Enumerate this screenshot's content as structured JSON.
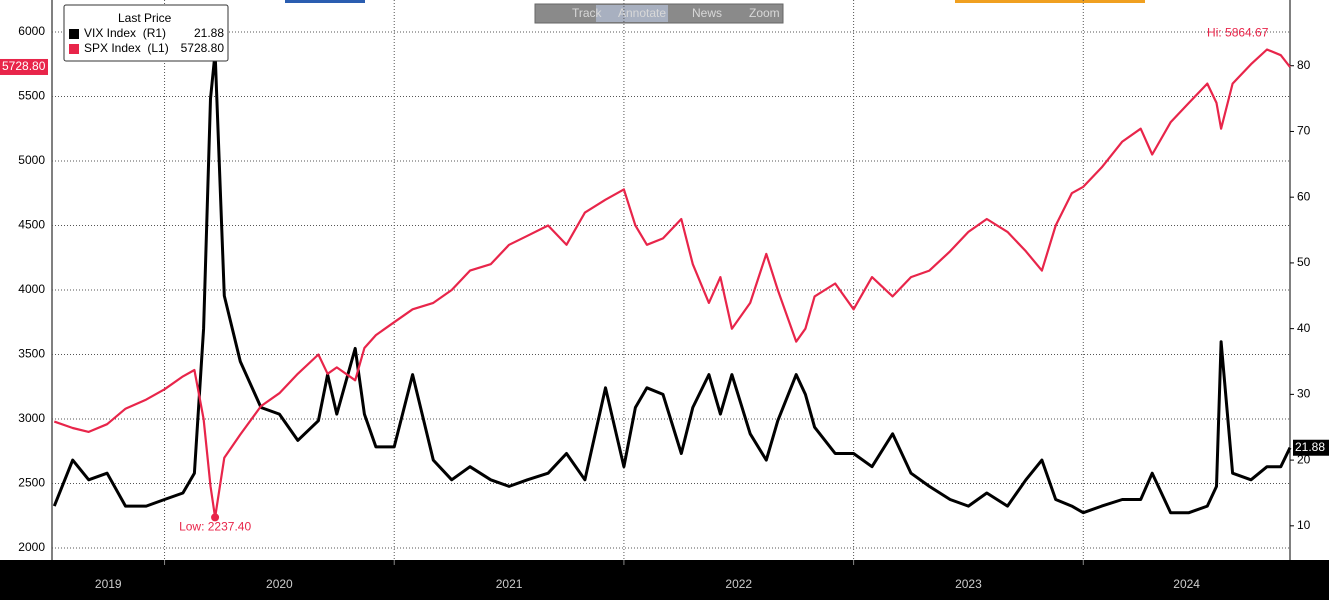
{
  "toolbar": [
    "Track",
    "Annotate",
    "News",
    "Zoom"
  ],
  "chart_data": {
    "type": "line",
    "legend_title": "Last Price",
    "annotations": [
      "Low: 2237.40",
      "Hi: 5864.67"
    ],
    "x": [
      2019.52,
      2019.6,
      2019.67,
      2019.75,
      2019.83,
      2019.92,
      2020.0,
      2020.08,
      2020.13,
      2020.17,
      2020.2,
      2020.22,
      2020.26,
      2020.33,
      2020.42,
      2020.5,
      2020.58,
      2020.67,
      2020.71,
      2020.75,
      2020.83,
      2020.87,
      2020.92,
      2021.0,
      2021.08,
      2021.17,
      2021.25,
      2021.33,
      2021.42,
      2021.5,
      2021.58,
      2021.67,
      2021.75,
      2021.83,
      2021.92,
      2022.0,
      2022.05,
      2022.1,
      2022.17,
      2022.25,
      2022.3,
      2022.37,
      2022.42,
      2022.47,
      2022.55,
      2022.62,
      2022.67,
      2022.75,
      2022.79,
      2022.83,
      2022.92,
      2023.0,
      2023.08,
      2023.17,
      2023.25,
      2023.33,
      2023.42,
      2023.5,
      2023.58,
      2023.67,
      2023.75,
      2023.82,
      2023.88,
      2023.95,
      2024.0,
      2024.08,
      2024.17,
      2024.25,
      2024.3,
      2024.38,
      2024.46,
      2024.54,
      2024.58,
      2024.6,
      2024.65,
      2024.73,
      2024.8,
      2024.86,
      2024.9
    ],
    "series": [
      {
        "name": "VIX Index  (R1)",
        "last_label": "21.88",
        "color": "#000000",
        "axis": "y2",
        "values": [
          13,
          20,
          17,
          18,
          13,
          13,
          14,
          15,
          18,
          40,
          75,
          82,
          45,
          35,
          28,
          27,
          23,
          26,
          33,
          27,
          37,
          27,
          22,
          22,
          33,
          20,
          17,
          19,
          17,
          16,
          17,
          18,
          21,
          17,
          31,
          19,
          28,
          31,
          30,
          21,
          28,
          33,
          27,
          33,
          24,
          20,
          26,
          33,
          30,
          25,
          21,
          21,
          19,
          24,
          18,
          16,
          14,
          13,
          15,
          13,
          17,
          20,
          14,
          13,
          12,
          13,
          14,
          14,
          18,
          12,
          12,
          13,
          16,
          38,
          18,
          17,
          19,
          19,
          21.88
        ]
      },
      {
        "name": "SPX Index  (L1)",
        "last_label": "5728.80",
        "color": "#e8254a",
        "axis": "y",
        "values": [
          2980,
          2930,
          2900,
          2960,
          3080,
          3150,
          3230,
          3330,
          3380,
          3000,
          2480,
          2237.4,
          2700,
          2880,
          3100,
          3200,
          3350,
          3500,
          3350,
          3400,
          3300,
          3550,
          3650,
          3750,
          3850,
          3900,
          4000,
          4150,
          4200,
          4350,
          4420,
          4500,
          4350,
          4600,
          4700,
          4780,
          4500,
          4350,
          4400,
          4550,
          4200,
          3900,
          4100,
          3700,
          3900,
          4280,
          4000,
          3600,
          3700,
          3950,
          4050,
          3850,
          4100,
          3950,
          4100,
          4150,
          4300,
          4450,
          4550,
          4450,
          4300,
          4150,
          4500,
          4750,
          4800,
          4950,
          5150,
          5250,
          5050,
          5300,
          5450,
          5600,
          5450,
          5250,
          5600,
          5750,
          5864.67,
          5820,
          5728.8
        ]
      }
    ],
    "xlim": [
      2019.51,
      2024.9
    ],
    "xticks": [
      2019,
      2020,
      2021,
      2022,
      2023,
      2024
    ],
    "ylim": [
      1907,
      6248
    ],
    "yticks": [
      2000,
      2500,
      3000,
      3500,
      4000,
      4500,
      5000,
      5500,
      6000
    ],
    "y2lim": [
      4.8,
      90
    ],
    "y2ticks": [
      10,
      20,
      30,
      40,
      50,
      60,
      70,
      80
    ],
    "grid": true
  }
}
